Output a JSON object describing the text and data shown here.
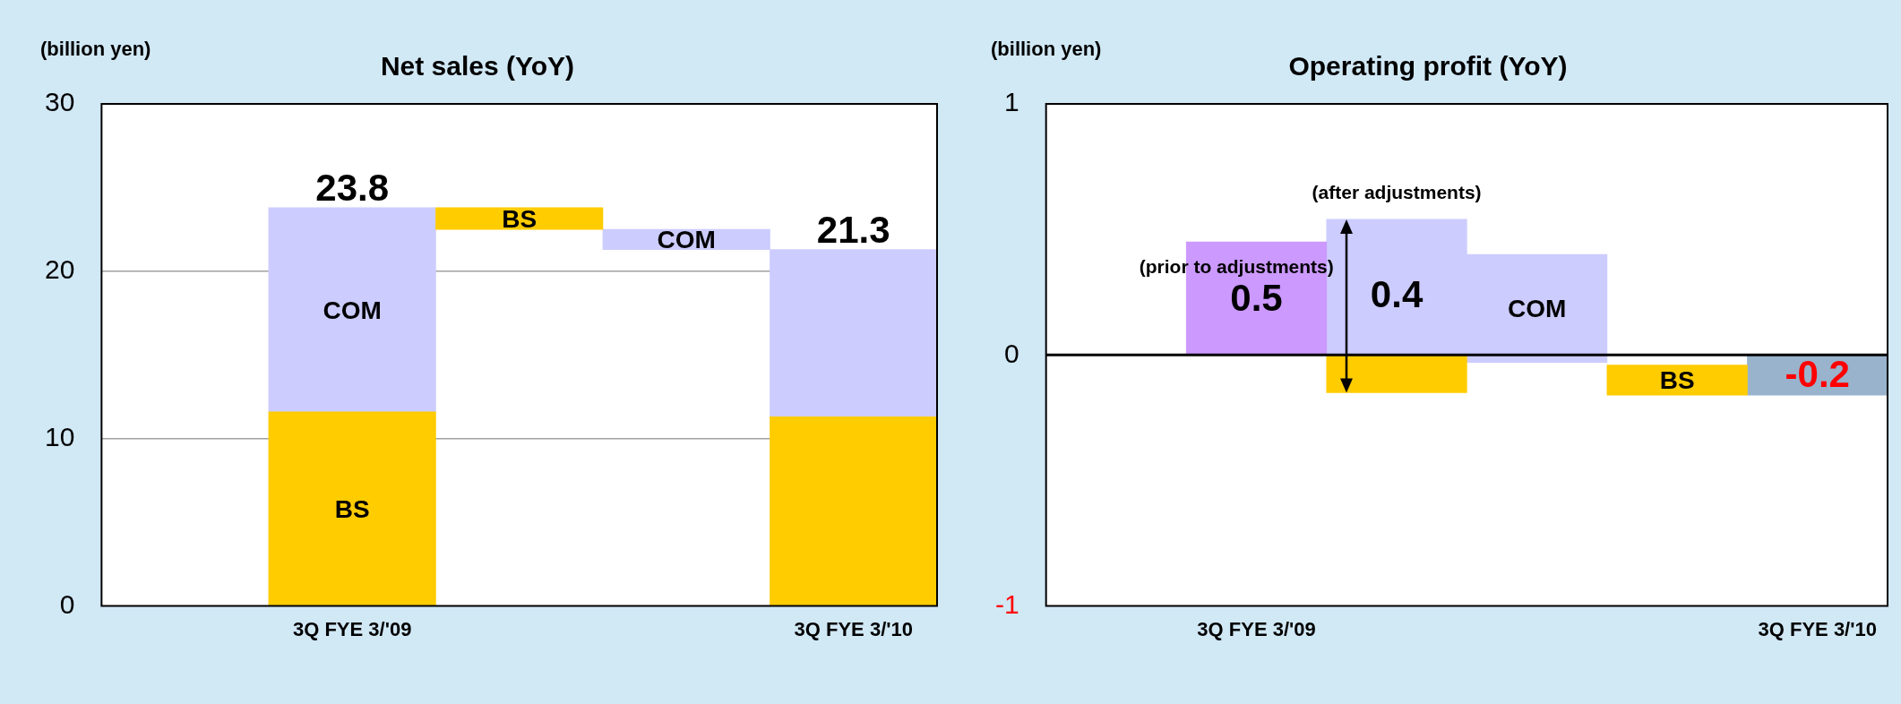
{
  "chart_data": [
    {
      "type": "bar",
      "title": "Net sales (YoY)",
      "ylabel": "(billion yen)",
      "categories": [
        "3Q FYE 3/'09",
        null,
        null,
        "3Q FYE 3/'10"
      ],
      "stacked": true,
      "series": [
        {
          "name": "BS",
          "color": "#ffcc00",
          "values": [
            11.6,
            -1.3,
            null,
            null
          ],
          "base": [
            null,
            23.8,
            null,
            null
          ]
        },
        {
          "name": "COM",
          "color": "#ccccff",
          "values": [
            12.2,
            null,
            -1.2,
            null
          ],
          "base": [
            null,
            null,
            22.5,
            null
          ]
        },
        {
          "color": "#ffcc00",
          "values": [
            null,
            null,
            null,
            11.3
          ]
        },
        {
          "color": "#ccccff",
          "values": [
            null,
            null,
            null,
            10.0
          ]
        }
      ],
      "totals": [
        "23.8",
        null,
        null,
        "21.3"
      ],
      "ylim": [
        0,
        30
      ],
      "yticks": [
        0,
        10,
        20,
        30
      ],
      "grid": "y"
    },
    {
      "type": "bar",
      "title": "Operating profit (YoY)",
      "ylabel": "(billion yen)",
      "categories": [
        "3Q FYE 3/'09",
        null,
        null,
        null,
        "3Q FYE 3/'10"
      ],
      "stacked": true,
      "series": [
        {
          "color": "#cc99ff",
          "values": [
            0.45,
            null,
            null,
            null,
            null
          ]
        },
        {
          "color": "#ccccff",
          "values": [
            null,
            0.54,
            null,
            null,
            null
          ]
        },
        {
          "color": "#ffcc00",
          "values": [
            null,
            -0.15,
            null,
            null,
            null
          ]
        },
        {
          "name": "COM",
          "color": "#ccccff",
          "values": [
            null,
            null,
            -0.43,
            null,
            null
          ],
          "base": [
            null,
            null,
            0.4,
            null,
            null
          ]
        },
        {
          "name": "BS",
          "color": "#ffcc00",
          "values": [
            null,
            null,
            null,
            -0.12,
            null
          ],
          "base": [
            null,
            null,
            null,
            -0.04,
            null
          ]
        },
        {
          "color": "#99b3cc",
          "values": [
            null,
            null,
            null,
            null,
            -0.16
          ]
        }
      ],
      "totals": [
        "0.5",
        "0.4",
        null,
        null,
        "-0.2"
      ],
      "ylim": [
        -1,
        1
      ],
      "yticks": [
        -1,
        0,
        1
      ],
      "grid": false,
      "ref_lines": [
        {
          "axis": "y",
          "value": 0,
          "color": "#000000"
        }
      ],
      "annotations": [
        "(prior to adjustments)",
        "(after adjustments)"
      ]
    }
  ]
}
